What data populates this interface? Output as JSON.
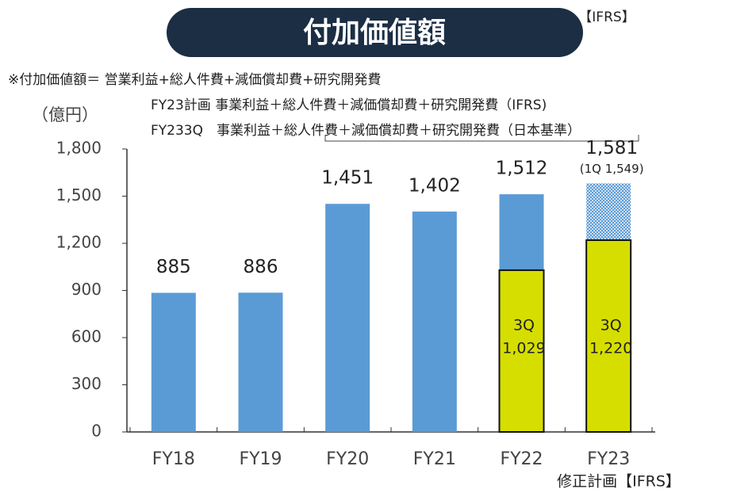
{
  "chart_data": {
    "type": "bar",
    "title": "付加価値額",
    "corner_label": "【IFRS】",
    "unit_label": "（億円）",
    "notes": [
      "※付加価値額＝ 営業利益+総人件費+減価償却費+研究開発費",
      "FY23計画 事業利益＋総人件費＋減価償却費＋研究開発費（IFRS)",
      "FY233Q　事業利益＋総人件費＋減価償却費＋研究開発費（日本基準）"
    ],
    "annotation": "(1Q 1,549)",
    "footnote": "修正計画【IFRS】",
    "categories": [
      "FY18",
      "FY19",
      "FY20",
      "FY21",
      "FY22",
      "FY23"
    ],
    "values": [
      885,
      886,
      1451,
      1402,
      1512,
      1581
    ],
    "value_labels": [
      "885",
      "886",
      "1,451",
      "1,402",
      "1,512",
      "1,581"
    ],
    "color": "#5b9bd5",
    "hatched": [
      false,
      false,
      false,
      false,
      false,
      true
    ],
    "overlay": {
      "name": "3Q",
      "color": "#d6de00",
      "values": [
        null,
        null,
        null,
        null,
        1029,
        1220
      ],
      "value_labels": [
        null,
        null,
        null,
        null,
        "1,029",
        "1,220"
      ]
    },
    "ylim": [
      0,
      1800
    ],
    "yticks": [
      0,
      300,
      600,
      900,
      {
        "value": 1200,
        "label": "1,200"
      },
      {
        "value": 1500,
        "label": "1,500"
      },
      {
        "value": 1800,
        "label": "1,800"
      }
    ]
  }
}
